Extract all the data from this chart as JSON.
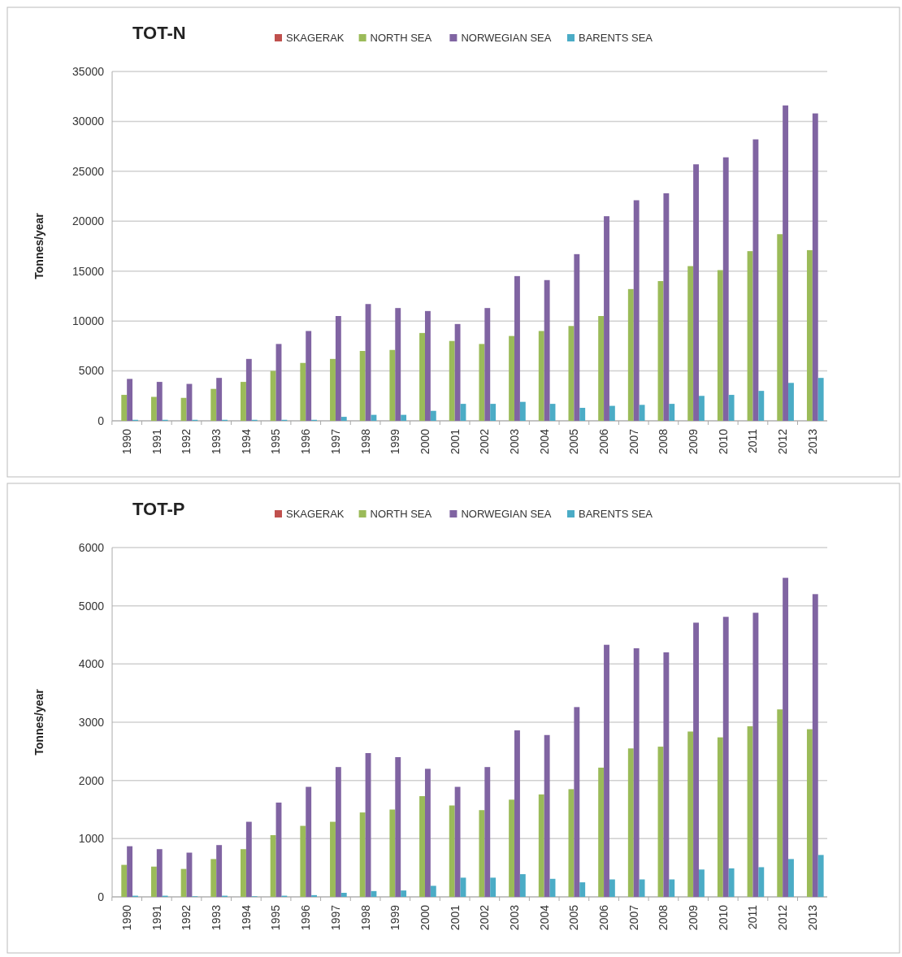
{
  "chart_data": [
    {
      "type": "bar",
      "title": "TOT-N",
      "ylabel": "Tonnes/year",
      "categories": [
        "1990",
        "1991",
        "1992",
        "1993",
        "1994",
        "1995",
        "1996",
        "1997",
        "1998",
        "1999",
        "2000",
        "2001",
        "2002",
        "2003",
        "2004",
        "2005",
        "2006",
        "2007",
        "2008",
        "2009",
        "2010",
        "2011",
        "2012",
        "2013"
      ],
      "series": [
        {
          "name": "SKAGERAK",
          "color": "#c0504d",
          "values": [
            null,
            null,
            null,
            null,
            null,
            null,
            null,
            null,
            null,
            null,
            null,
            null,
            null,
            null,
            null,
            null,
            null,
            null,
            null,
            null,
            null,
            null,
            null,
            null
          ]
        },
        {
          "name": "NORTH SEA",
          "color": "#9bbb59",
          "values": [
            2600,
            2400,
            2300,
            3200,
            3900,
            5000,
            5800,
            6200,
            7000,
            7100,
            8800,
            8000,
            7700,
            8500,
            9000,
            9500,
            10500,
            13200,
            14000,
            15500,
            15100,
            17000,
            18700,
            17100
          ]
        },
        {
          "name": "NORWEGIAN SEA",
          "color": "#8064a2",
          "values": [
            4200,
            3900,
            3700,
            4300,
            6200,
            7700,
            9000,
            10500,
            11700,
            11300,
            11000,
            9700,
            11300,
            14500,
            14100,
            16700,
            20500,
            22100,
            22800,
            25700,
            26400,
            28200,
            31600,
            30800
          ]
        },
        {
          "name": "BARENTS SEA",
          "color": "#4bacc6",
          "values": [
            100,
            100,
            100,
            100,
            100,
            100,
            100,
            400,
            600,
            600,
            1000,
            1700,
            1700,
            1900,
            1700,
            1300,
            1500,
            1600,
            1700,
            2500,
            2600,
            3000,
            3800,
            4300
          ]
        }
      ],
      "ylim": [
        0,
        35000
      ],
      "yticks": [
        0,
        5000,
        10000,
        15000,
        20000,
        25000,
        30000,
        35000
      ],
      "grid": "y",
      "legend": "top"
    },
    {
      "type": "bar",
      "title": "TOT-P",
      "ylabel": "Tonnes/year",
      "categories": [
        "1990",
        "1991",
        "1992",
        "1993",
        "1994",
        "1995",
        "1996",
        "1997",
        "1998",
        "1999",
        "2000",
        "2001",
        "2002",
        "2003",
        "2004",
        "2005",
        "2006",
        "2007",
        "2008",
        "2009",
        "2010",
        "2011",
        "2012",
        "2013"
      ],
      "series": [
        {
          "name": "SKAGERAK",
          "color": "#c0504d",
          "values": [
            null,
            null,
            null,
            null,
            null,
            null,
            null,
            null,
            null,
            null,
            null,
            null,
            null,
            null,
            null,
            null,
            null,
            null,
            null,
            null,
            null,
            null,
            null,
            null
          ]
        },
        {
          "name": "NORTH SEA",
          "color": "#9bbb59",
          "values": [
            550,
            520,
            480,
            650,
            820,
            1060,
            1220,
            1290,
            1450,
            1500,
            1730,
            1570,
            1490,
            1670,
            1760,
            1850,
            2220,
            2550,
            2580,
            2840,
            2740,
            2930,
            3220,
            2880
          ]
        },
        {
          "name": "NORWEGIAN SEA",
          "color": "#8064a2",
          "values": [
            870,
            820,
            760,
            890,
            1290,
            1620,
            1890,
            2230,
            2470,
            2400,
            2200,
            1890,
            2230,
            2860,
            2780,
            3260,
            4330,
            4270,
            4200,
            4710,
            4810,
            4880,
            5480,
            5200
          ]
        },
        {
          "name": "BARENTS SEA",
          "color": "#4bacc6",
          "values": [
            20,
            20,
            10,
            20,
            10,
            20,
            30,
            70,
            100,
            110,
            190,
            330,
            330,
            390,
            310,
            250,
            300,
            300,
            300,
            470,
            490,
            510,
            650,
            720
          ]
        }
      ],
      "ylim": [
        0,
        6000
      ],
      "yticks": [
        0,
        1000,
        2000,
        3000,
        4000,
        5000,
        6000
      ],
      "grid": "y",
      "legend": "top"
    }
  ]
}
